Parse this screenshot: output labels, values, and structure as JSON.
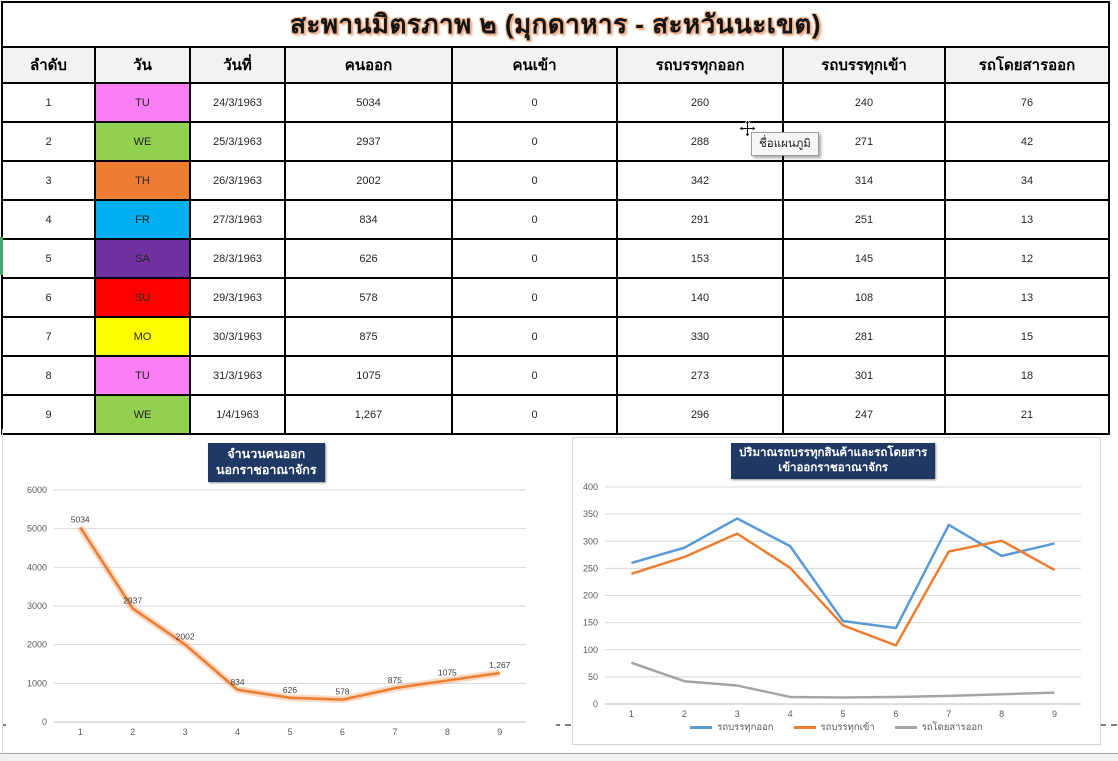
{
  "title": "สะพานมิตรภาพ ๒ (มุกดาหาร - สะหวันนะเขต)",
  "tooltip": {
    "text": "ชื่อแผนภูมิ"
  },
  "colors": {
    "header_bg": "#F2F2F2",
    "table_border": "#000000",
    "chart_title_bg": "#1F3864",
    "gridline": "#D9D9D9"
  },
  "table": {
    "headers": [
      "ลำดับ",
      "วัน",
      "วันที่",
      "คนออก",
      "คนเข้า",
      "รถบรรทุกออก",
      "รถบรรทุกเข้า",
      "รถโดยสารออก"
    ],
    "rows": [
      {
        "no": "1",
        "day": "TU",
        "day_color": "#F97DF3",
        "date": "24/3/1963",
        "people_out": "5034",
        "people_in": "0",
        "trucks_out": "260",
        "trucks_in": "240",
        "buses_out": "76"
      },
      {
        "no": "2",
        "day": "WE",
        "day_color": "#92D050",
        "date": "25/3/1963",
        "people_out": "2937",
        "people_in": "0",
        "trucks_out": "288",
        "trucks_in": "271",
        "buses_out": "42"
      },
      {
        "no": "3",
        "day": "TH",
        "day_color": "#ED7D31",
        "date": "26/3/1963",
        "people_out": "2002",
        "people_in": "0",
        "trucks_out": "342",
        "trucks_in": "314",
        "buses_out": "34"
      },
      {
        "no": "4",
        "day": "FR",
        "day_color": "#00B0F0",
        "date": "27/3/1963",
        "people_out": "834",
        "people_in": "0",
        "trucks_out": "291",
        "trucks_in": "251",
        "buses_out": "13"
      },
      {
        "no": "5",
        "day": "SA",
        "day_color": "#7030A0",
        "date": "28/3/1963",
        "people_out": "626",
        "people_in": "0",
        "trucks_out": "153",
        "trucks_in": "145",
        "buses_out": "12"
      },
      {
        "no": "6",
        "day": "SU",
        "day_color": "#FF0000",
        "date": "29/3/1963",
        "people_out": "578",
        "people_in": "0",
        "trucks_out": "140",
        "trucks_in": "108",
        "buses_out": "13"
      },
      {
        "no": "7",
        "day": "MO",
        "day_color": "#FFFF00",
        "date": "30/3/1963",
        "people_out": "875",
        "people_in": "0",
        "trucks_out": "330",
        "trucks_in": "281",
        "buses_out": "15"
      },
      {
        "no": "8",
        "day": "TU",
        "day_color": "#F97DF3",
        "date": "31/3/1963",
        "people_out": "1075",
        "people_in": "0",
        "trucks_out": "273",
        "trucks_in": "301",
        "buses_out": "18"
      },
      {
        "no": "9",
        "day": "WE",
        "day_color": "#92D050",
        "date": "1/4/1963",
        "people_out": "1,267",
        "people_in": "0",
        "trucks_out": "296",
        "trucks_in": "247",
        "buses_out": "21"
      }
    ]
  },
  "chart_data": [
    {
      "type": "line",
      "title": "จำนวนคนออก นอกราชอาณาจักร",
      "title_lines": [
        "จำนวนคนออก",
        "นอกราชอาณาจักร"
      ],
      "categories": [
        "1",
        "2",
        "3",
        "4",
        "5",
        "6",
        "7",
        "8",
        "9"
      ],
      "values": [
        5034,
        2937,
        2002,
        834,
        626,
        578,
        875,
        1075,
        1267
      ],
      "labels": [
        "5034",
        "2937",
        "2002",
        "834",
        "626",
        "578",
        "875",
        "1075",
        "1,267"
      ],
      "color": "#ED7D31",
      "glow": true,
      "xlabel": "",
      "ylabel": "",
      "ylim": [
        0,
        6000
      ],
      "ytick": 1000,
      "grid": true,
      "legend_position": "none"
    },
    {
      "type": "line",
      "title": "ปริมาณรถบรรทุกสินค้าและรถโดยสาร เข้าออกราชอาณาจักร",
      "title_lines": [
        "ปริมาณรถบรรทุกสินค้าและรถโดยสาร",
        "เข้าออกราชอาณาจักร"
      ],
      "categories": [
        "1",
        "2",
        "3",
        "4",
        "5",
        "6",
        "7",
        "8",
        "9"
      ],
      "series": [
        {
          "name": "รถบรรทุกออก",
          "color": "#5B9BD5",
          "values": [
            260,
            288,
            342,
            291,
            153,
            140,
            330,
            273,
            296
          ]
        },
        {
          "name": "รถบรรทุกเข้า",
          "color": "#ED7D31",
          "values": [
            240,
            271,
            314,
            251,
            145,
            108,
            281,
            301,
            247
          ]
        },
        {
          "name": "รถโดยสารออก",
          "color": "#A5A5A5",
          "values": [
            76,
            42,
            34,
            13,
            12,
            13,
            15,
            18,
            21
          ]
        }
      ],
      "xlabel": "",
      "ylabel": "",
      "ylim": [
        0,
        400
      ],
      "ytick": 50,
      "grid": true,
      "legend_position": "bottom"
    }
  ]
}
